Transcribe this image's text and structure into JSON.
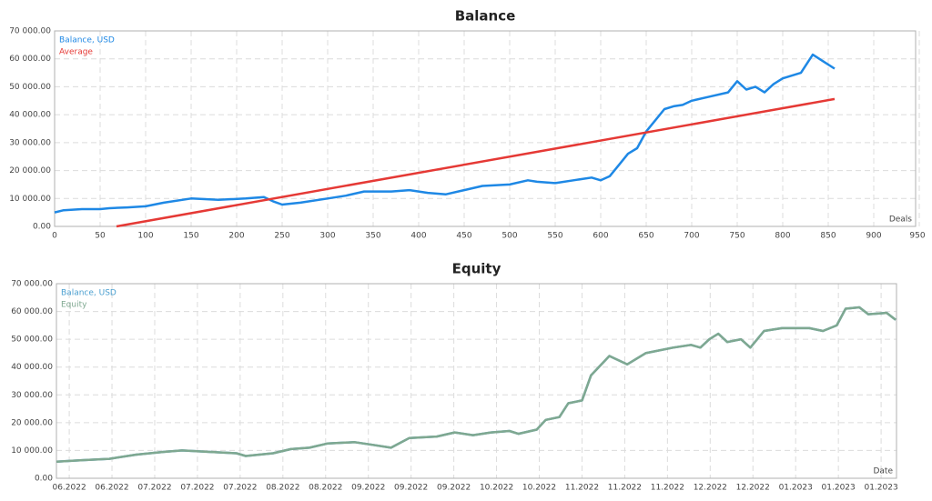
{
  "chart_data": [
    {
      "type": "line",
      "title": "Balance",
      "x_annotation": "Deals",
      "grid": true,
      "legend": "upper left",
      "xlim": [
        0,
        946
      ],
      "ylim": [
        0,
        70000
      ],
      "xticks": [
        0,
        50,
        100,
        150,
        200,
        250,
        300,
        350,
        400,
        450,
        500,
        550,
        600,
        650,
        700,
        750,
        800,
        850,
        900,
        950
      ],
      "yticks": [
        {
          "value": 0,
          "label": "0.00"
        },
        {
          "value": 10000,
          "label": "10 000.00"
        },
        {
          "value": 20000,
          "label": "20 000.00"
        },
        {
          "value": 30000,
          "label": "30 000.00"
        },
        {
          "value": 40000,
          "label": "40 000.00"
        },
        {
          "value": 50000,
          "label": "50 000.00"
        },
        {
          "value": 60000,
          "label": "60 000.00"
        },
        {
          "value": 70000,
          "label": "70 000.00"
        }
      ],
      "series": [
        {
          "name": "Balance, USD",
          "color": "#1e88e5",
          "x": [
            0,
            10,
            30,
            50,
            60,
            80,
            100,
            120,
            150,
            180,
            210,
            230,
            240,
            250,
            270,
            300,
            320,
            340,
            370,
            390,
            410,
            430,
            450,
            470,
            500,
            520,
            530,
            550,
            570,
            590,
            600,
            610,
            620,
            630,
            640,
            650,
            660,
            670,
            680,
            690,
            700,
            720,
            740,
            750,
            760,
            770,
            780,
            790,
            800,
            820,
            833,
            845,
            857
          ],
          "values": [
            5000,
            5800,
            6200,
            6200,
            6500,
            6800,
            7200,
            8500,
            10000,
            9500,
            10000,
            10500,
            9000,
            7800,
            8500,
            10000,
            11000,
            12500,
            12500,
            13000,
            12000,
            11500,
            13000,
            14500,
            15000,
            16500,
            16000,
            15500,
            16500,
            17500,
            16500,
            18000,
            22000,
            26000,
            28000,
            34000,
            38000,
            42000,
            43000,
            43500,
            45000,
            46500,
            48000,
            52000,
            49000,
            50000,
            48000,
            51000,
            53000,
            55000,
            61500,
            59000,
            56500
          ]
        },
        {
          "name": "Average",
          "color": "#e53935",
          "x": [
            68,
            857
          ],
          "values": [
            0,
            45600
          ]
        }
      ]
    },
    {
      "type": "line",
      "title": "Equity",
      "x_annotation": "Date",
      "grid": true,
      "legend": "upper left",
      "xlim": [
        -0.3,
        19.36
      ],
      "ylim": [
        0,
        70000
      ],
      "xticks": [
        {
          "value": 0,
          "label": "06.2022"
        },
        {
          "value": 1,
          "label": "06.2022"
        },
        {
          "value": 2,
          "label": "07.2022"
        },
        {
          "value": 3,
          "label": "07.2022"
        },
        {
          "value": 4,
          "label": "07.2022"
        },
        {
          "value": 5,
          "label": "08.2022"
        },
        {
          "value": 6,
          "label": "08.2022"
        },
        {
          "value": 7,
          "label": "09.2022"
        },
        {
          "value": 8,
          "label": "09.2022"
        },
        {
          "value": 9,
          "label": "09.2022"
        },
        {
          "value": 10,
          "label": "10.2022"
        },
        {
          "value": 11,
          "label": "10.2022"
        },
        {
          "value": 12,
          "label": "11.2022"
        },
        {
          "value": 13,
          "label": "11.2022"
        },
        {
          "value": 14,
          "label": "11.2022"
        },
        {
          "value": 15,
          "label": "12.2022"
        },
        {
          "value": 16,
          "label": "12.2022"
        },
        {
          "value": 17,
          "label": "01.2023"
        },
        {
          "value": 18,
          "label": "01.2023"
        },
        {
          "value": 19,
          "label": "01.2023"
        }
      ],
      "yticks": [
        {
          "value": 0,
          "label": "0.00"
        },
        {
          "value": 10000,
          "label": "10 000.00"
        },
        {
          "value": 20000,
          "label": "20 000.00"
        },
        {
          "value": 30000,
          "label": "30 000.00"
        },
        {
          "value": 40000,
          "label": "40 000.00"
        },
        {
          "value": 50000,
          "label": "50 000.00"
        },
        {
          "value": 60000,
          "label": "60 000.00"
        },
        {
          "value": 70000,
          "label": "70 000.00"
        }
      ],
      "series": [
        {
          "name": "Balance, USD",
          "color": "#4a9fd0",
          "x": [
            -0.3,
            0.3,
            0.94,
            1.57,
            2.21,
            2.64,
            3.28,
            3.91,
            4.13,
            4.77,
            5.19,
            5.62,
            6.04,
            6.68,
            7.11,
            7.53,
            7.96,
            8.6,
            9.02,
            9.45,
            9.87,
            10.3,
            10.51,
            10.94,
            11.15,
            11.47,
            11.68,
            12.0,
            12.21,
            12.64,
            13.06,
            13.49,
            14.13,
            14.55,
            14.77,
            14.98,
            15.19,
            15.4,
            15.72,
            15.94,
            16.26,
            16.68,
            17.32,
            17.64,
            17.96,
            18.17,
            18.49,
            18.7,
            19.13,
            19.34
          ],
          "values": [
            6000,
            6500,
            7000,
            8500,
            9500,
            10000,
            9500,
            9000,
            8000,
            9000,
            10500,
            11000,
            12500,
            13000,
            12000,
            11000,
            14500,
            15000,
            16500,
            15500,
            16500,
            17000,
            16000,
            17500,
            21000,
            22000,
            27000,
            28000,
            37000,
            44000,
            41000,
            45000,
            47000,
            48000,
            47000,
            50000,
            52000,
            49000,
            50000,
            47000,
            53000,
            54000,
            54000,
            53000,
            55000,
            61000,
            61500,
            59000,
            59500,
            57000
          ]
        },
        {
          "name": "Equity",
          "color": "#7fa890",
          "x": [
            -0.3,
            0.3,
            0.94,
            1.57,
            2.21,
            2.64,
            3.28,
            3.91,
            4.13,
            4.77,
            5.19,
            5.62,
            6.04,
            6.68,
            7.11,
            7.53,
            7.96,
            8.6,
            9.02,
            9.45,
            9.87,
            10.3,
            10.51,
            10.94,
            11.15,
            11.47,
            11.68,
            12.0,
            12.21,
            12.64,
            13.06,
            13.49,
            14.13,
            14.55,
            14.77,
            14.98,
            15.19,
            15.4,
            15.72,
            15.94,
            16.26,
            16.68,
            17.32,
            17.64,
            17.96,
            18.17,
            18.49,
            18.7,
            19.13,
            19.34
          ],
          "values": [
            6000,
            6500,
            7000,
            8500,
            9500,
            10000,
            9500,
            9000,
            8000,
            9000,
            10500,
            11000,
            12500,
            13000,
            12000,
            11000,
            14500,
            15000,
            16500,
            15500,
            16500,
            17000,
            16000,
            17500,
            21000,
            22000,
            27000,
            28000,
            37000,
            44000,
            41000,
            45000,
            47000,
            48000,
            47000,
            50000,
            52000,
            49000,
            50000,
            47000,
            53000,
            54000,
            54000,
            53000,
            55000,
            61000,
            61500,
            59000,
            59500,
            57000
          ]
        }
      ]
    }
  ]
}
